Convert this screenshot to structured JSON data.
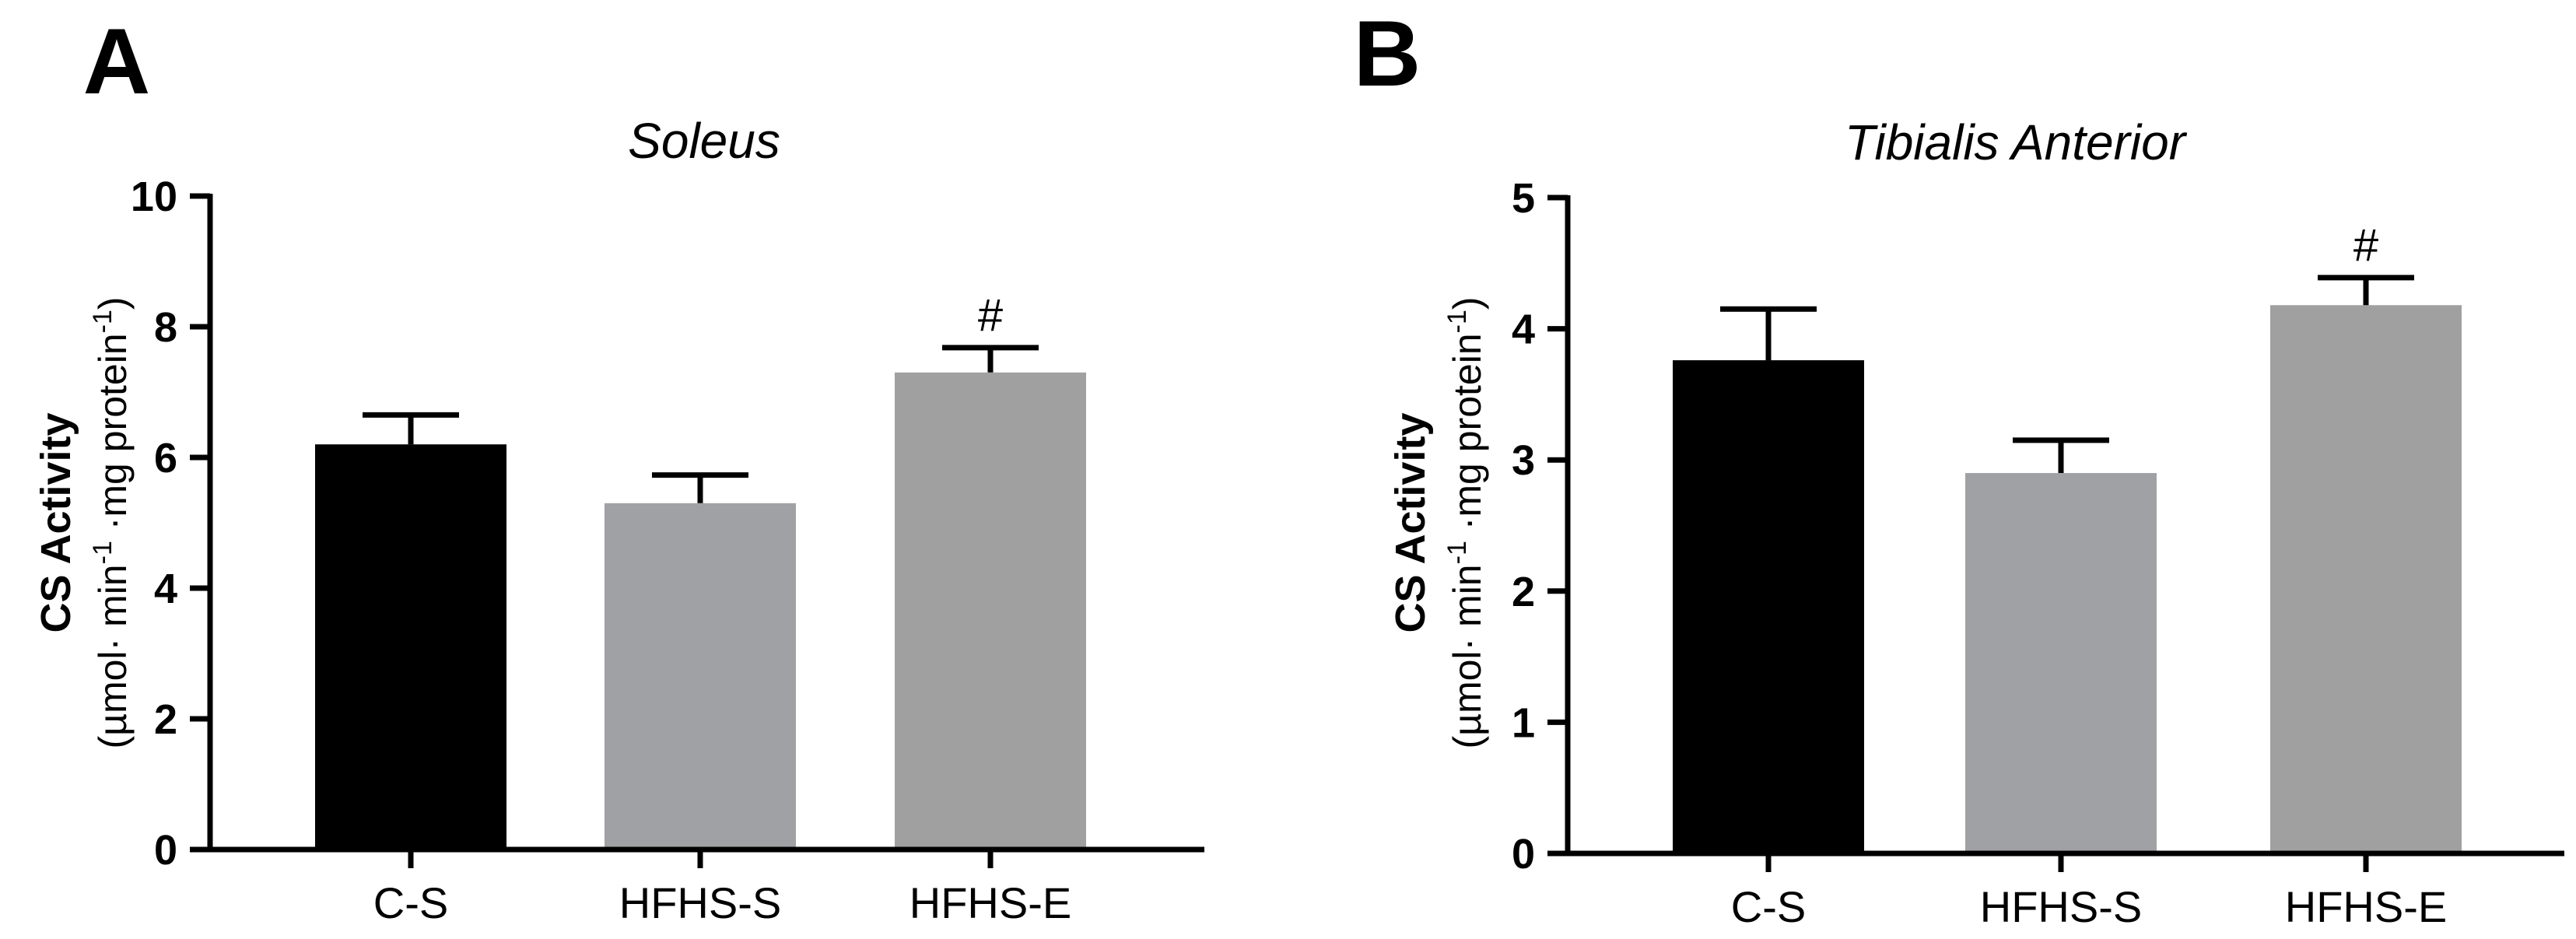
{
  "chart_data": [
    {
      "type": "bar",
      "panel_letter": "A",
      "title": "Soleus",
      "ylabel_main": "CS Activity",
      "ylabel_units": {
        "open": "(µmol· min",
        "sup1": "-1",
        "mid": " ·mg protein",
        "sup2": "-1",
        "close": ")"
      },
      "categories": [
        "C-S",
        "HFHS-S",
        "HFHS-E"
      ],
      "values": [
        6.2,
        5.3,
        7.3
      ],
      "errors": [
        0.45,
        0.43,
        0.38
      ],
      "annotations": [
        "",
        "",
        "#"
      ],
      "bar_colors": [
        "#000000",
        "#a0a1a5",
        "#a0a0a0"
      ],
      "ylim": [
        0,
        10
      ],
      "yticks": [
        0,
        2,
        4,
        6,
        8,
        10
      ],
      "grid": false
    },
    {
      "type": "bar",
      "panel_letter": "B",
      "title": "Tibialis Anterior",
      "ylabel_main": "CS Activity",
      "ylabel_units": {
        "open": "(µmol· min",
        "sup1": "-1",
        "mid": " ·mg protein",
        "sup2": "-1",
        "close": ")"
      },
      "categories": [
        "C-S",
        "HFHS-S",
        "HFHS-E"
      ],
      "values": [
        3.76,
        2.9,
        4.18
      ],
      "errors": [
        0.39,
        0.25,
        0.21
      ],
      "annotations": [
        "",
        "",
        "#"
      ],
      "bar_colors": [
        "#000000",
        "#a0a1a5",
        "#a0a0a0"
      ],
      "ylim": [
        0,
        5
      ],
      "yticks": [
        0,
        1,
        2,
        3,
        4,
        5
      ],
      "grid": false
    }
  ]
}
